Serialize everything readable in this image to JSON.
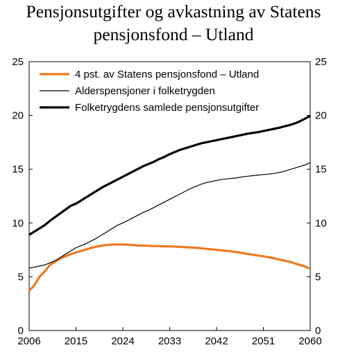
{
  "chart_data": {
    "type": "line",
    "title_lines": [
      "Pensjonsutgifter og avkastning av Statens",
      "pensjonsfond – Utland"
    ],
    "x_ticks": [
      "2006",
      "2015",
      "2024",
      "2033",
      "2042",
      "2051",
      "2060"
    ],
    "y_ticks": [
      "0",
      "5",
      "10",
      "15",
      "20",
      "25"
    ],
    "ylim": [
      0,
      25
    ],
    "xlim": [
      2006,
      2060
    ],
    "grid": false,
    "legend_position": "top-left",
    "series": [
      {
        "name": "4 pst. av Statens pensjonsfond – Utland",
        "color": "#f07820",
        "width": "thick",
        "x": [
          2006,
          2007,
          2008,
          2009,
          2010,
          2011,
          2012,
          2013,
          2014,
          2015,
          2016,
          2017,
          2018,
          2019,
          2020,
          2021,
          2022,
          2023,
          2024,
          2025,
          2026,
          2027,
          2028,
          2029,
          2030,
          2031,
          2032,
          2033,
          2034,
          2035,
          2036,
          2037,
          2038,
          2039,
          2040,
          2041,
          2042,
          2043,
          2044,
          2045,
          2046,
          2047,
          2048,
          2049,
          2050,
          2051,
          2052,
          2053,
          2054,
          2055,
          2056,
          2057,
          2058,
          2059,
          2060
        ],
        "y": [
          3.7,
          4.2,
          5.0,
          5.5,
          6.1,
          6.4,
          6.7,
          6.9,
          7.1,
          7.25,
          7.4,
          7.55,
          7.7,
          7.8,
          7.9,
          7.95,
          8.0,
          8.0,
          8.0,
          7.98,
          7.95,
          7.9,
          7.9,
          7.88,
          7.85,
          7.85,
          7.83,
          7.83,
          7.8,
          7.78,
          7.75,
          7.72,
          7.7,
          7.65,
          7.6,
          7.55,
          7.5,
          7.45,
          7.4,
          7.35,
          7.28,
          7.2,
          7.12,
          7.05,
          6.97,
          6.9,
          6.82,
          6.72,
          6.62,
          6.5,
          6.4,
          6.25,
          6.1,
          5.95,
          5.75
        ]
      },
      {
        "name": "Alderspensjoner i folketrygden",
        "color": "#000000",
        "width": "thin",
        "x": [
          2006,
          2007,
          2008,
          2009,
          2010,
          2011,
          2012,
          2013,
          2014,
          2015,
          2016,
          2017,
          2018,
          2019,
          2020,
          2021,
          2022,
          2023,
          2024,
          2025,
          2026,
          2027,
          2028,
          2029,
          2030,
          2031,
          2032,
          2033,
          2034,
          2035,
          2036,
          2037,
          2038,
          2039,
          2040,
          2041,
          2042,
          2043,
          2044,
          2045,
          2046,
          2047,
          2048,
          2049,
          2050,
          2051,
          2052,
          2053,
          2054,
          2055,
          2056,
          2057,
          2058,
          2059,
          2060
        ],
        "y": [
          5.8,
          5.9,
          6.0,
          6.1,
          6.3,
          6.5,
          6.8,
          7.1,
          7.4,
          7.7,
          7.9,
          8.1,
          8.35,
          8.6,
          8.9,
          9.2,
          9.5,
          9.8,
          10.0,
          10.25,
          10.5,
          10.75,
          11.0,
          11.2,
          11.45,
          11.7,
          11.95,
          12.2,
          12.45,
          12.7,
          12.95,
          13.2,
          13.4,
          13.6,
          13.75,
          13.85,
          13.95,
          14.05,
          14.1,
          14.15,
          14.2,
          14.3,
          14.35,
          14.4,
          14.45,
          14.5,
          14.55,
          14.6,
          14.7,
          14.8,
          14.95,
          15.1,
          15.25,
          15.4,
          15.6
        ]
      },
      {
        "name": "Folketrygdens samlede pensjonsutgifter",
        "color": "#000000",
        "width": "thick",
        "x": [
          2006,
          2007,
          2008,
          2009,
          2010,
          2011,
          2012,
          2013,
          2014,
          2015,
          2016,
          2017,
          2018,
          2019,
          2020,
          2021,
          2022,
          2023,
          2024,
          2025,
          2026,
          2027,
          2028,
          2029,
          2030,
          2031,
          2032,
          2033,
          2034,
          2035,
          2036,
          2037,
          2038,
          2039,
          2040,
          2041,
          2042,
          2043,
          2044,
          2045,
          2046,
          2047,
          2048,
          2049,
          2050,
          2051,
          2052,
          2053,
          2054,
          2055,
          2056,
          2057,
          2058,
          2059,
          2060
        ],
        "y": [
          8.9,
          9.2,
          9.5,
          9.8,
          10.2,
          10.55,
          10.9,
          11.25,
          11.6,
          11.8,
          12.1,
          12.4,
          12.7,
          13.0,
          13.3,
          13.55,
          13.8,
          14.05,
          14.3,
          14.55,
          14.8,
          15.05,
          15.3,
          15.5,
          15.7,
          15.95,
          16.15,
          16.4,
          16.6,
          16.8,
          16.95,
          17.1,
          17.25,
          17.4,
          17.5,
          17.6,
          17.7,
          17.8,
          17.9,
          18.0,
          18.1,
          18.2,
          18.3,
          18.38,
          18.45,
          18.55,
          18.65,
          18.75,
          18.85,
          18.98,
          19.1,
          19.25,
          19.45,
          19.7,
          19.95
        ]
      }
    ]
  }
}
